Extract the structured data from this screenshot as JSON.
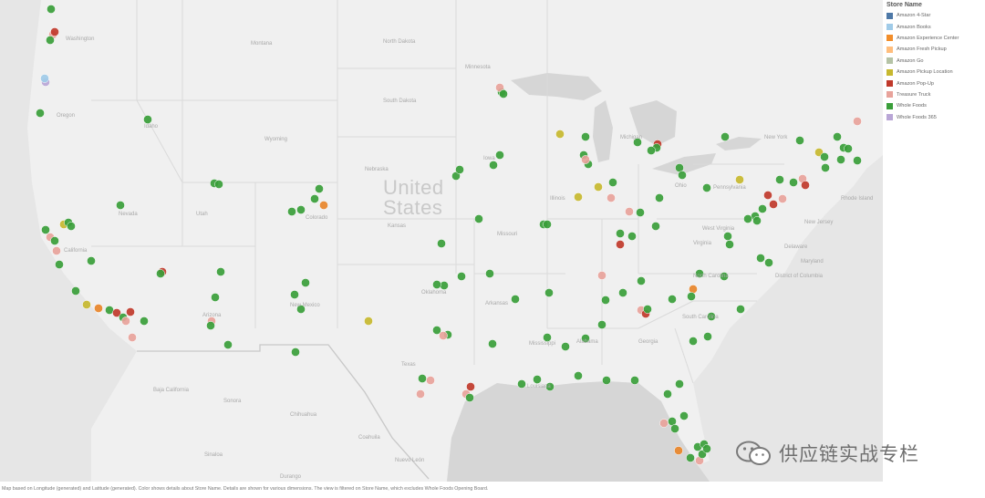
{
  "map": {
    "country_label_line1": "United",
    "country_label_line2": "States",
    "state_labels": [
      "Washington",
      "Oregon",
      "Idaho",
      "Montana",
      "Wyoming",
      "Nevada",
      "Utah",
      "Colorado",
      "California",
      "Arizona",
      "New Mexico",
      "North Dakota",
      "South Dakota",
      "Nebraska",
      "Kansas",
      "Oklahoma",
      "Texas",
      "Minnesota",
      "Iowa",
      "Missouri",
      "Arkansas",
      "Louisiana",
      "Mississippi",
      "Alabama",
      "Georgia",
      "Illinois",
      "Michigan",
      "Ohio",
      "Pennsylvania",
      "New York",
      "West Virginia",
      "Virginia",
      "North Carolina",
      "South Carolina",
      "New Jersey",
      "Delaware",
      "Maryland",
      "District of Columbia",
      "Rhode Island",
      "Baja California",
      "Sonora",
      "Chihuahua",
      "Coahuila",
      "Nuevo León",
      "Sinaloa",
      "Durango"
    ],
    "colors": {
      "background": "#e6e6e6",
      "land": "#f0f0f0",
      "water": "#d6d6d6"
    }
  },
  "legend": {
    "title": "Store Name",
    "items": [
      {
        "label": "Amazon 4-Star",
        "color": "#4e79a7"
      },
      {
        "label": "Amazon Books",
        "color": "#a0cbe8"
      },
      {
        "label": "Amazon Experience Center",
        "color": "#f28e2b"
      },
      {
        "label": "Amazon Fresh Pickup",
        "color": "#ffbe7d"
      },
      {
        "label": "Amazon Go",
        "color": "#b5c3a6"
      },
      {
        "label": "Amazon Pickup Location",
        "color": "#c7b82f"
      },
      {
        "label": "Amazon Pop-Up",
        "color": "#c0392b"
      },
      {
        "label": "Treasure Truck",
        "color": "#e8a39b"
      },
      {
        "label": "Whole Foods",
        "color": "#3a9e3a"
      },
      {
        "label": "Whole Foods 365",
        "color": "#b9a6d6"
      }
    ]
  },
  "footer_note": "Map based on Longitude (generated) and Latitude (generated).  Color shows details about Store Name.  Details are shown for various dimensions. The view is filtered on Store Name, which excludes Whole Foods Opening Board.",
  "watermark": {
    "text": "供应链实战专栏",
    "icon": "wechat-icon"
  }
}
